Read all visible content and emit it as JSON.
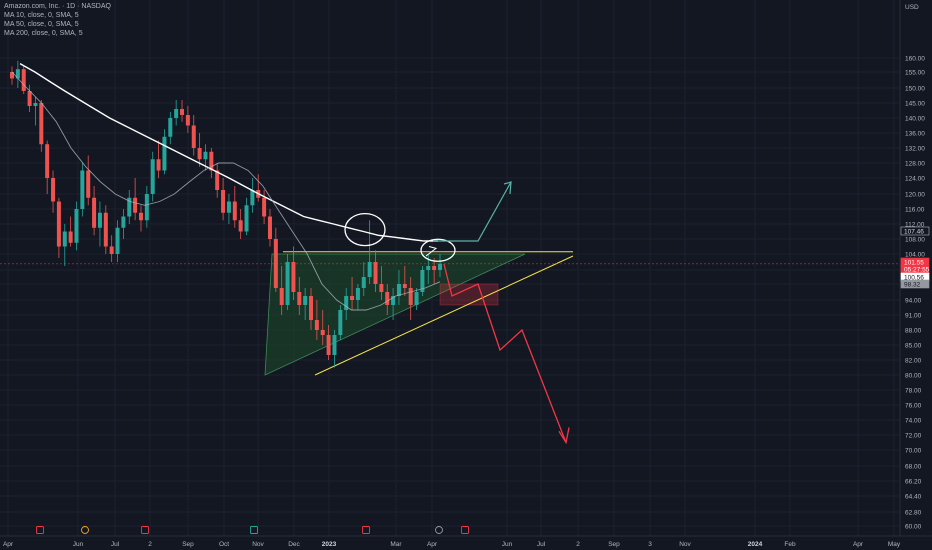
{
  "legend": {
    "symbol": "Amazon.com, Inc. · 1D · NASDAQ",
    "ma_fast": "MA 10, close, 0, SMA, 5",
    "ma_mid": "MA 50, close, 0, SMA, 5",
    "ma_slow": "MA 200, close, 0, SMA, 5"
  },
  "colors": {
    "background": "#131722",
    "up_candle": "#26a69a",
    "down_candle": "#ef5350",
    "ma_200": "#ffffff",
    "ma_50": "#b2b5be",
    "ma_10": "#ffffff",
    "resistance_line": "#f5e14b",
    "bear_arrow": "#f23645",
    "bull_arrow": "#5ab3a6",
    "triangle_fill": "#1e4d2b",
    "last_price_tag": "#f23645"
  },
  "chart_data": {
    "type": "candlestick",
    "currency": "USD",
    "y_ticks": [
      "60.00",
      "62.80",
      "64.40",
      "66.20",
      "68.00",
      "70.00",
      "72.00",
      "74.00",
      "76.00",
      "78.00",
      "80.00",
      "82.00",
      "85.00",
      "88.00",
      "91.00",
      "94.00",
      "98.00",
      "100.00",
      "104.00",
      "108.00",
      "112.00",
      "116.00",
      "120.00",
      "124.00",
      "128.00",
      "132.00",
      "136.00",
      "140.00",
      "145.00",
      "150.00",
      "155.00",
      "160.00"
    ],
    "x_ticks": [
      "Apr",
      "Jun",
      "Jul",
      "2",
      "Sep",
      "Oct",
      "Nov",
      "Dec",
      "2023",
      "Mar",
      "Apr",
      "Jun",
      "Jul",
      "2",
      "Sep",
      "3",
      "Nov",
      "2024",
      "Feb",
      "Apr",
      "May"
    ],
    "ylim": [
      60,
      160
    ],
    "price_tags": [
      {
        "label": "107.46",
        "style": "outline",
        "value": 107.46
      },
      {
        "label": "101.55",
        "style": "red",
        "value": 101.55
      },
      {
        "label": "05:27:55",
        "style": "red",
        "value": 100.8
      },
      {
        "label": "100.56",
        "style": "dark",
        "value": 100.56
      },
      {
        "label": "98.32",
        "style": "gray",
        "value": 98.32
      }
    ],
    "candles_ohlc": [
      [
        155,
        157,
        151,
        153
      ],
      [
        153,
        159,
        150,
        156
      ],
      [
        156,
        157,
        148,
        149
      ],
      [
        149,
        151,
        142,
        144
      ],
      [
        144,
        147,
        138,
        145
      ],
      [
        145,
        146,
        131,
        133
      ],
      [
        133,
        134,
        120,
        124
      ],
      [
        124,
        126,
        115,
        118
      ],
      [
        118,
        119,
        103,
        106
      ],
      [
        106,
        112,
        101,
        110
      ],
      [
        110,
        114,
        106,
        107
      ],
      [
        107,
        118,
        105,
        116
      ],
      [
        116,
        128,
        114,
        126
      ],
      [
        126,
        130,
        117,
        119
      ],
      [
        119,
        122,
        109,
        111
      ],
      [
        111,
        118,
        106,
        115
      ],
      [
        115,
        117,
        104,
        106
      ],
      [
        106,
        109,
        102,
        104
      ],
      [
        104,
        113,
        102,
        111
      ],
      [
        111,
        116,
        108,
        114
      ],
      [
        114,
        121,
        112,
        119
      ],
      [
        119,
        124,
        113,
        115
      ],
      [
        115,
        117,
        110,
        113
      ],
      [
        113,
        122,
        111,
        120
      ],
      [
        120,
        131,
        118,
        129
      ],
      [
        129,
        134,
        124,
        126
      ],
      [
        126,
        137,
        125,
        135
      ],
      [
        135,
        142,
        133,
        140
      ],
      [
        140,
        146,
        138,
        143
      ],
      [
        143,
        146,
        139,
        141
      ],
      [
        141,
        144,
        136,
        138
      ],
      [
        138,
        141,
        130,
        132
      ],
      [
        132,
        136,
        127,
        129
      ],
      [
        129,
        133,
        126,
        131
      ],
      [
        131,
        132,
        124,
        126
      ],
      [
        126,
        128,
        119,
        121
      ],
      [
        121,
        124,
        113,
        115
      ],
      [
        115,
        120,
        112,
        118
      ],
      [
        118,
        122,
        111,
        113
      ],
      [
        113,
        116,
        108,
        110
      ],
      [
        110,
        119,
        109,
        117
      ],
      [
        117,
        124,
        115,
        121
      ],
      [
        121,
        125,
        118,
        119
      ],
      [
        119,
        121,
        112,
        114
      ],
      [
        114,
        116,
        106,
        108
      ],
      [
        108,
        111,
        96,
        97
      ],
      [
        97,
        101,
        91,
        93
      ],
      [
        93,
        104,
        92,
        102
      ],
      [
        102,
        106,
        94,
        96
      ],
      [
        96,
        99,
        91,
        93
      ],
      [
        93,
        97,
        90,
        95
      ],
      [
        95,
        97,
        88,
        90
      ],
      [
        90,
        94,
        86,
        88
      ],
      [
        88,
        92,
        85,
        87
      ],
      [
        87,
        89,
        82,
        83
      ],
      [
        83,
        88,
        81,
        87
      ],
      [
        87,
        93,
        86,
        92
      ],
      [
        92,
        97,
        90,
        95
      ],
      [
        95,
        99,
        92,
        94
      ],
      [
        94,
        98,
        92,
        97
      ],
      [
        97,
        102,
        95,
        99
      ],
      [
        99,
        113,
        98,
        102
      ],
      [
        102,
        105,
        96,
        98
      ],
      [
        98,
        101,
        94,
        96
      ],
      [
        96,
        98,
        91,
        93
      ],
      [
        93,
        97,
        90,
        95
      ],
      [
        95,
        100,
        93,
        98
      ],
      [
        98,
        101,
        95,
        97
      ],
      [
        97,
        99,
        90,
        93
      ],
      [
        93,
        97,
        92,
        96
      ],
      [
        96,
        101,
        95,
        100
      ],
      [
        100,
        104,
        98,
        101
      ],
      [
        101,
        103,
        98,
        100
      ],
      [
        100,
        104,
        99,
        101.55
      ]
    ],
    "moving_averages": [
      {
        "name": "MA 200",
        "values": [
          158,
          155,
          152,
          149,
          146,
          143,
          140,
          138,
          136,
          134,
          132,
          130,
          128,
          126,
          124,
          122,
          120,
          118,
          116,
          114,
          113,
          112,
          111,
          110,
          109,
          108.5,
          108,
          107.5,
          107.46
        ]
      },
      {
        "name": "MA 50",
        "values": [
          155,
          150,
          145,
          139,
          132,
          127,
          123,
          120,
          118,
          117,
          118,
          120,
          123,
          126,
          128,
          128,
          126,
          122,
          116,
          110,
          104,
          98,
          94,
          92,
          92,
          93,
          95,
          96,
          97,
          98.32
        ]
      }
    ],
    "annotations": {
      "triangle": "ascending triangle",
      "bear_path": [
        101.5,
        95,
        98,
        91,
        84,
        88,
        71
      ],
      "bull_path": [
        107.46,
        107.46,
        123
      ]
    }
  }
}
